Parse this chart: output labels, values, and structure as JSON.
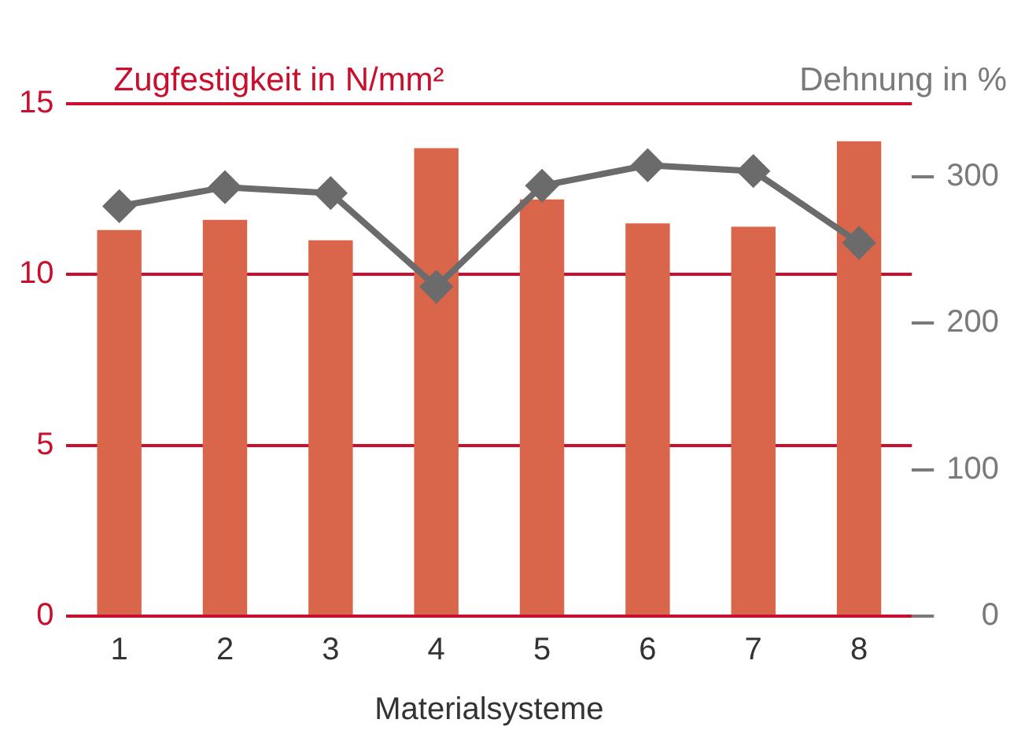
{
  "chart_data": {
    "type": "bar",
    "categories": [
      "1",
      "2",
      "3",
      "4",
      "5",
      "6",
      "7",
      "8"
    ],
    "xlabel": "Materialsysteme",
    "ylabel": "Zugfestigkeit in N/mm²",
    "y2label": "Dehnung in %",
    "series": [
      {
        "color": "#d9654a",
        "values": [
          11.3,
          11.6,
          11.0,
          13.7,
          12.2,
          11.5,
          11.4,
          13.9
        ]
      },
      {
        "type": "line",
        "axis": "y2",
        "color": "#6b6b6b",
        "marker": "diamond",
        "values": [
          280,
          293,
          289,
          225,
          294,
          308,
          304,
          255
        ]
      }
    ],
    "ylim": [
      0,
      15
    ],
    "yticks": [
      0,
      5,
      10,
      15
    ],
    "y2lim": [
      0,
      350
    ],
    "y2ticks": [
      0,
      100,
      200,
      300
    ],
    "grid": "y",
    "legend": false
  }
}
